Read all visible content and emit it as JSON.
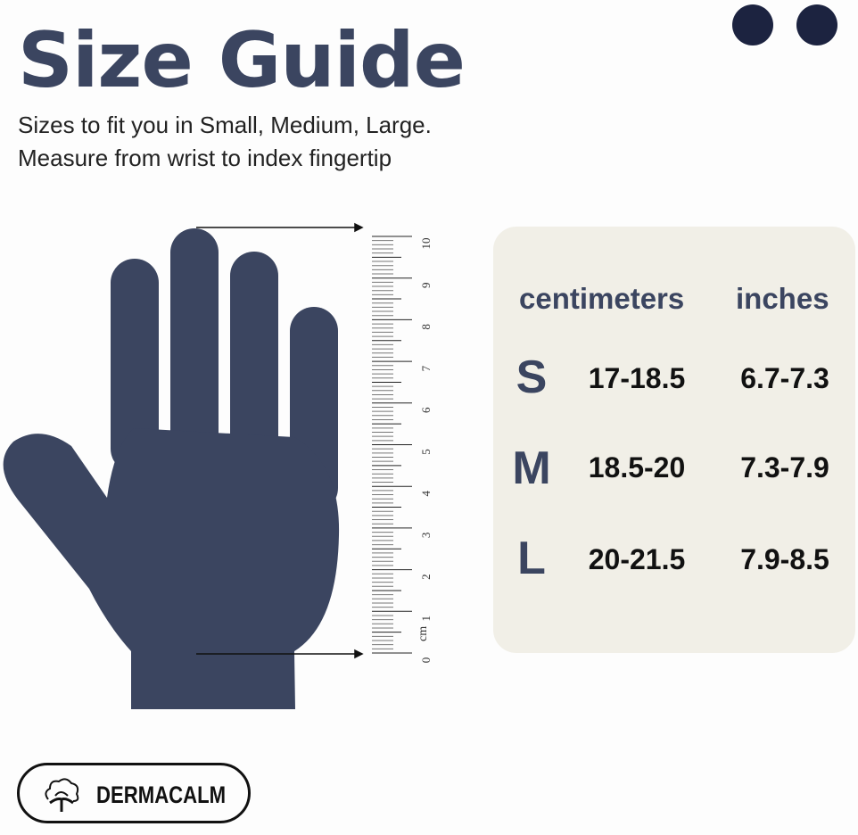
{
  "title": "Size Guide",
  "subtitle_lines": [
    "Sizes to fit you in Small, Medium, Large.",
    "Measure from wrist to index fingertip"
  ],
  "ruler": {
    "unit": "cm",
    "labels": [
      "0",
      "1",
      "2",
      "3",
      "4",
      "5",
      "6",
      "7",
      "8",
      "9",
      "10"
    ]
  },
  "table": {
    "headers": [
      "centimeters",
      "inches"
    ],
    "rows": [
      {
        "size": "S",
        "cm": "17-18.5",
        "in": "6.7-7.3"
      },
      {
        "size": "M",
        "cm": "18.5-20",
        "in": "7.3-7.9"
      },
      {
        "size": "L",
        "cm": "20-21.5",
        "in": "7.9-8.5"
      }
    ]
  },
  "brand": "DERMACALM",
  "colors": {
    "primary": "#3b4560",
    "dots": "#1c2340",
    "panel": "#f1efe7"
  }
}
